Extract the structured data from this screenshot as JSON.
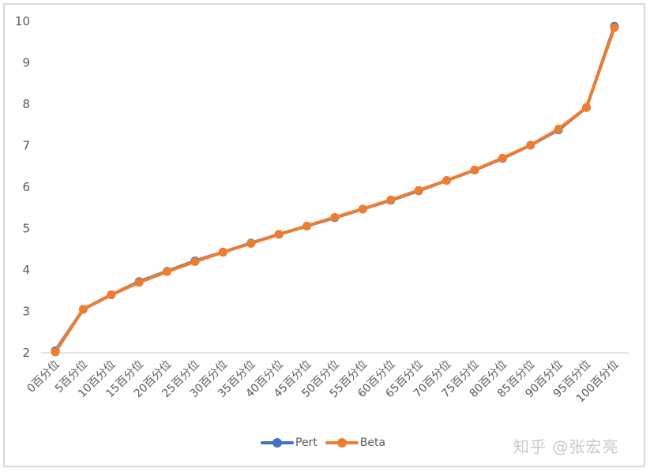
{
  "chart_data": {
    "type": "line",
    "title": "",
    "xlabel": "",
    "ylabel": "",
    "ylim": [
      2,
      10
    ],
    "yticks": [
      2,
      3,
      4,
      5,
      6,
      7,
      8,
      9,
      10
    ],
    "grid": false,
    "legend_position": "bottom",
    "categories": [
      "0百分位",
      "5百分位",
      "10百分位",
      "15百分位",
      "20百分位",
      "25百分位",
      "30百分位",
      "35百分位",
      "40百分位",
      "45百分位",
      "50百分位",
      "55百分位",
      "60百分位",
      "65百分位",
      "70百分位",
      "75百分位",
      "80百分位",
      "85百分位",
      "90百分位",
      "95百分位",
      "100百分位"
    ],
    "series": [
      {
        "name": "Pert",
        "color": "#4472C4",
        "values": [
          2.05,
          3.05,
          3.4,
          3.72,
          3.97,
          4.22,
          4.43,
          4.65,
          4.86,
          5.06,
          5.26,
          5.47,
          5.68,
          5.91,
          6.16,
          6.41,
          6.69,
          7.01,
          7.38,
          7.92,
          9.88
        ]
      },
      {
        "name": "Beta",
        "color": "#ED7D31",
        "values": [
          2.02,
          3.05,
          3.4,
          3.7,
          3.96,
          4.2,
          4.43,
          4.64,
          4.86,
          5.06,
          5.27,
          5.47,
          5.69,
          5.92,
          6.16,
          6.41,
          6.7,
          7.01,
          7.4,
          7.92,
          9.85
        ]
      }
    ]
  },
  "legend": {
    "items": [
      {
        "label": "Pert",
        "color": "#4472C4"
      },
      {
        "label": "Beta",
        "color": "#ED7D31"
      }
    ]
  },
  "watermark": "知乎 @张宏亮"
}
